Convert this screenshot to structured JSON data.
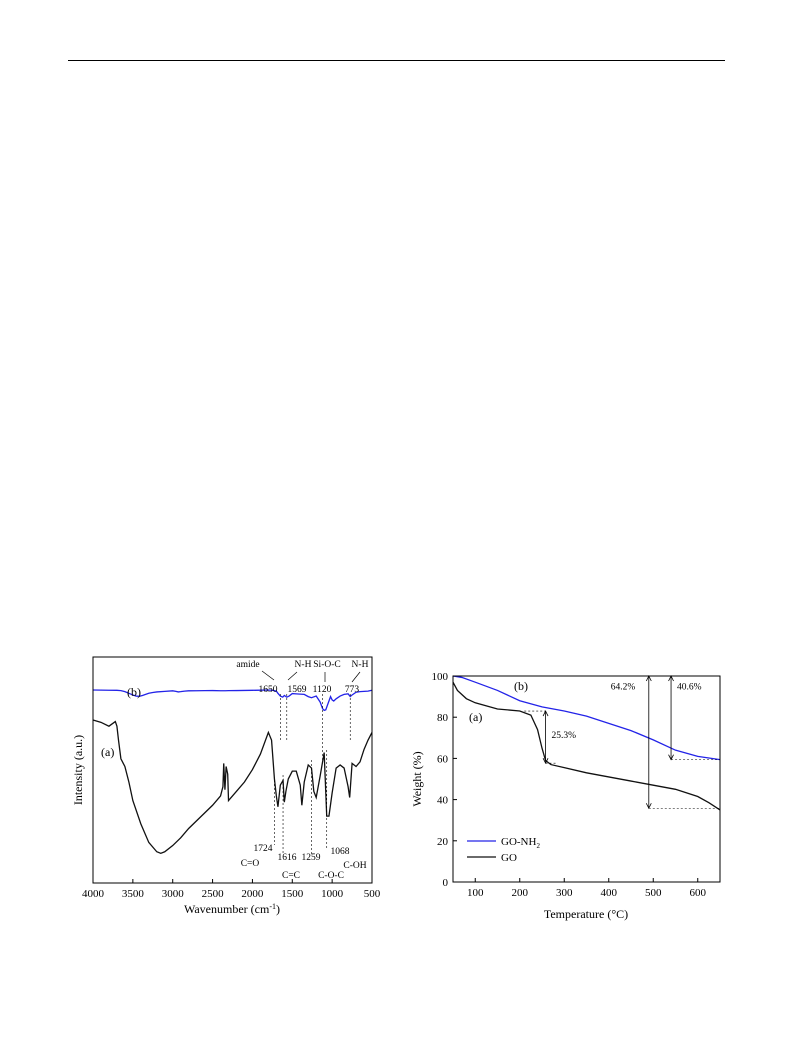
{
  "chart_data": [
    {
      "type": "line",
      "title": "",
      "xlabel": "Wavenumber (cm",
      "xlabel_sup": "-1",
      "xlabel_tail": ")",
      "ylabel": "Intensity (a.u.)",
      "xlim": [
        4000,
        500
      ],
      "x_reversed": true,
      "xticks": [
        4000,
        3500,
        3000,
        2500,
        2000,
        1500,
        1000,
        500
      ],
      "series": [
        {
          "name": "(b)",
          "color": "#2323e8",
          "x": [
            4000,
            3900,
            3800,
            3700,
            3650,
            3600,
            3550,
            3500,
            3460,
            3420,
            3380,
            3340,
            3300,
            3250,
            3200,
            3100,
            3000,
            2960,
            2930,
            2900,
            2850,
            2800,
            2700,
            2600,
            2500,
            2400,
            2360,
            2340,
            2300,
            2200,
            2100,
            2000,
            1900,
            1800,
            1750,
            1700,
            1680,
            1650,
            1620,
            1600,
            1569,
            1540,
            1500,
            1450,
            1400,
            1350,
            1300,
            1259,
            1200,
            1150,
            1120,
            1100,
            1080,
            1060,
            1040,
            1020,
            1000,
            980,
            950,
            900,
            850,
            800,
            773,
            750,
            700,
            650,
            600,
            550,
            500
          ],
          "y": [
            0,
            0.2,
            0.4,
            0.6,
            1.2,
            3,
            6,
            9,
            11,
            11.5,
            10,
            8,
            6,
            4.5,
            3.5,
            2.5,
            1.5,
            2.5,
            3.5,
            3,
            2,
            1.5,
            1.3,
            1.1,
            1,
            1.3,
            1.4,
            1.3,
            1.2,
            1,
            0.8,
            0.6,
            0.3,
            0,
            0.5,
            2,
            6,
            11,
            13,
            10,
            13,
            11,
            6.5,
            7,
            7.5,
            8,
            12,
            14,
            11,
            22,
            34,
            37,
            36,
            28,
            20,
            12,
            18,
            20,
            16,
            11,
            8,
            7,
            12,
            9,
            4,
            3,
            2.5,
            2,
            0.5
          ]
        },
        {
          "name": "(a)",
          "color": "#111111",
          "x": [
            4000,
            3900,
            3800,
            3720,
            3700,
            3680,
            3650,
            3620,
            3600,
            3550,
            3500,
            3400,
            3300,
            3200,
            3150,
            3100,
            3000,
            2900,
            2800,
            2700,
            2600,
            2500,
            2400,
            2370,
            2360,
            2345,
            2330,
            2310,
            2300,
            2200,
            2100,
            2000,
            1900,
            1800,
            1760,
            1724,
            1700,
            1680,
            1650,
            1616,
            1600,
            1580,
            1550,
            1500,
            1450,
            1400,
            1380,
            1350,
            1300,
            1259,
            1230,
            1200,
            1150,
            1100,
            1068,
            1040,
            1000,
            950,
            900,
            850,
            800,
            780,
            750,
            700,
            650,
            600,
            550,
            500
          ],
          "y": [
            0,
            1.5,
            4,
            1,
            4,
            13,
            25,
            28,
            30,
            40,
            52,
            67,
            79,
            85,
            86,
            85,
            81,
            76,
            70,
            65,
            60,
            55,
            49,
            43,
            28,
            45,
            30,
            35,
            52,
            46,
            40,
            32,
            22,
            8,
            13,
            38,
            49,
            56,
            42,
            39,
            53,
            46,
            38,
            33,
            33,
            42,
            55,
            40,
            29,
            31,
            46,
            50,
            36,
            21,
            62,
            62,
            47,
            31,
            29,
            31,
            43,
            50,
            28,
            30,
            27,
            19,
            13,
            8
          ]
        }
      ],
      "annotations": [
        {
          "text": "amide",
          "x": 1650
        },
        {
          "text": "1650",
          "x": 1650
        },
        {
          "text": "N-H",
          "x": 1569
        },
        {
          "text": "1569",
          "x": 1569
        },
        {
          "text": "Si-O-C",
          "x": 1120
        },
        {
          "text": "1120",
          "x": 1120
        },
        {
          "text": "N-H",
          "x": 773
        },
        {
          "text": "773",
          "x": 773
        },
        {
          "text": "1724",
          "x": 1724
        },
        {
          "text": "C=O",
          "x": 1724
        },
        {
          "text": "1616",
          "x": 1616
        },
        {
          "text": "C=C",
          "x": 1616
        },
        {
          "text": "1259",
          "x": 1259
        },
        {
          "text": "C-O-C",
          "x": 1259
        },
        {
          "text": "1068",
          "x": 1068
        },
        {
          "text": "C-OH",
          "x": 1068
        }
      ]
    },
    {
      "type": "line",
      "title": "",
      "xlabel": "Temperature (",
      "xlabel_unit": "°C",
      "xlabel_tail": ")",
      "ylabel": "Weight (%)",
      "xlim": [
        50,
        650
      ],
      "ylim": [
        0,
        100
      ],
      "xticks": [
        100,
        200,
        300,
        400,
        500,
        600
      ],
      "yticks": [
        0,
        20,
        40,
        60,
        80,
        100
      ],
      "legend_position": "bottom-left",
      "series": [
        {
          "name": "GO-NH",
          "name_sub": "2",
          "label": "(b)",
          "color": "#2323e8",
          "x": [
            50,
            70,
            100,
            150,
            200,
            250,
            300,
            350,
            400,
            450,
            500,
            550,
            600,
            650
          ],
          "y": [
            100,
            99.3,
            97,
            93,
            88,
            85,
            83,
            80.5,
            77,
            73.5,
            69,
            64,
            61,
            59.4
          ]
        },
        {
          "name": "GO",
          "label": "(a)",
          "color": "#111111",
          "x": [
            50,
            60,
            80,
            100,
            150,
            200,
            225,
            240,
            250,
            258,
            270,
            300,
            350,
            400,
            450,
            500,
            550,
            600,
            625,
            650
          ],
          "y": [
            97,
            93,
            89,
            87,
            84,
            83,
            81,
            74,
            65,
            59,
            57,
            55.5,
            53,
            51,
            49,
            47,
            45,
            41.5,
            38.5,
            35
          ]
        }
      ],
      "annotations": [
        {
          "text": "25.3%",
          "x1": 258,
          "y1": 83,
          "y2": 57.7
        },
        {
          "text": "64.2%",
          "x1": 490,
          "y1": 100,
          "y2": 35.8
        },
        {
          "text": "40.6%",
          "x1": 540,
          "y1": 100,
          "y2": 59.4
        }
      ]
    }
  ]
}
